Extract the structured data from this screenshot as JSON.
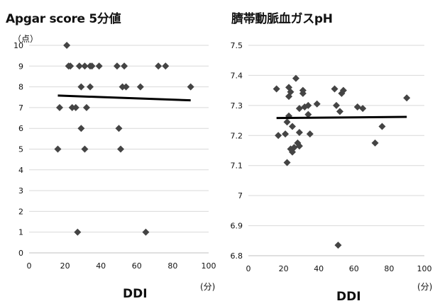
{
  "charts": [
    {
      "id": "left",
      "title": "Apgar score 5分値",
      "y_unit": "（点）",
      "x_unit": "(分)",
      "xlabel": "DDI"
    },
    {
      "id": "right",
      "title": "臍帯動脈血ガスpH",
      "y_unit": "",
      "x_unit": "(分)",
      "xlabel": "DDI"
    }
  ],
  "chart_data": [
    {
      "type": "scatter",
      "title": "Apgar score 5分値",
      "xlabel": "DDI",
      "ylabel": "（点）",
      "x_unit": "(分)",
      "xlim": [
        0,
        100
      ],
      "ylim": [
        0,
        10
      ],
      "x_ticks": [
        "0",
        "20",
        "40",
        "60",
        "80",
        "100"
      ],
      "y_ticks": [
        "0",
        "1",
        "2",
        "3",
        "4",
        "5",
        "6",
        "7",
        "8",
        "9",
        "10"
      ],
      "grid": true,
      "marker_color": "#444444",
      "line_color": "#000000",
      "points": [
        {
          "x": 16,
          "y": 5
        },
        {
          "x": 17,
          "y": 7
        },
        {
          "x": 21,
          "y": 10
        },
        {
          "x": 22,
          "y": 9
        },
        {
          "x": 23,
          "y": 9
        },
        {
          "x": 24,
          "y": 7
        },
        {
          "x": 26,
          "y": 7
        },
        {
          "x": 27,
          "y": 1
        },
        {
          "x": 28,
          "y": 9
        },
        {
          "x": 29,
          "y": 6
        },
        {
          "x": 29,
          "y": 8
        },
        {
          "x": 31,
          "y": 9
        },
        {
          "x": 31,
          "y": 5
        },
        {
          "x": 32,
          "y": 7
        },
        {
          "x": 34,
          "y": 8
        },
        {
          "x": 34,
          "y": 9
        },
        {
          "x": 35,
          "y": 9
        },
        {
          "x": 39,
          "y": 9
        },
        {
          "x": 49,
          "y": 9
        },
        {
          "x": 50,
          "y": 6
        },
        {
          "x": 51,
          "y": 5
        },
        {
          "x": 52,
          "y": 8
        },
        {
          "x": 53,
          "y": 9
        },
        {
          "x": 54,
          "y": 8
        },
        {
          "x": 62,
          "y": 8
        },
        {
          "x": 65,
          "y": 1
        },
        {
          "x": 72,
          "y": 9
        },
        {
          "x": 76,
          "y": 9
        },
        {
          "x": 90,
          "y": 8
        }
      ],
      "trend_line": {
        "x": [
          16,
          90
        ],
        "y": [
          7.58,
          7.35
        ]
      }
    },
    {
      "type": "scatter",
      "title": "臍帯動脈血ガスpH",
      "xlabel": "DDI",
      "x_unit": "(分)",
      "xlim": [
        0,
        100
      ],
      "ylim": [
        6.8,
        7.5
      ],
      "x_ticks": [
        "0",
        "20",
        "40",
        "60",
        "80",
        "100"
      ],
      "y_ticks": [
        "6.8",
        "6.9",
        "7",
        "7.1",
        "7.2",
        "7.3",
        "7.4",
        "7.5"
      ],
      "grid": true,
      "marker_color": "#444444",
      "line_color": "#000000",
      "points": [
        {
          "x": 16,
          "y": 7.355
        },
        {
          "x": 17,
          "y": 7.2
        },
        {
          "x": 21,
          "y": 7.205
        },
        {
          "x": 22,
          "y": 7.11
        },
        {
          "x": 22,
          "y": 7.245
        },
        {
          "x": 23,
          "y": 7.33
        },
        {
          "x": 23,
          "y": 7.36
        },
        {
          "x": 23,
          "y": 7.265
        },
        {
          "x": 24,
          "y": 7.345
        },
        {
          "x": 24,
          "y": 7.155
        },
        {
          "x": 25,
          "y": 7.145
        },
        {
          "x": 25,
          "y": 7.23
        },
        {
          "x": 26,
          "y": 7.16
        },
        {
          "x": 27,
          "y": 7.39
        },
        {
          "x": 28,
          "y": 7.175
        },
        {
          "x": 29,
          "y": 7.165
        },
        {
          "x": 29,
          "y": 7.21
        },
        {
          "x": 29,
          "y": 7.29
        },
        {
          "x": 31,
          "y": 7.35
        },
        {
          "x": 31,
          "y": 7.34
        },
        {
          "x": 32,
          "y": 7.295
        },
        {
          "x": 34,
          "y": 7.3
        },
        {
          "x": 34,
          "y": 7.27
        },
        {
          "x": 35,
          "y": 7.205
        },
        {
          "x": 39,
          "y": 7.305
        },
        {
          "x": 49,
          "y": 7.355
        },
        {
          "x": 50,
          "y": 7.3
        },
        {
          "x": 51,
          "y": 6.835
        },
        {
          "x": 52,
          "y": 7.28
        },
        {
          "x": 53,
          "y": 7.34
        },
        {
          "x": 54,
          "y": 7.35
        },
        {
          "x": 62,
          "y": 7.295
        },
        {
          "x": 65,
          "y": 7.29
        },
        {
          "x": 72,
          "y": 7.175
        },
        {
          "x": 76,
          "y": 7.23
        },
        {
          "x": 90,
          "y": 7.325
        }
      ],
      "trend_line": {
        "x": [
          16,
          90
        ],
        "y": [
          7.258,
          7.262
        ]
      }
    }
  ]
}
